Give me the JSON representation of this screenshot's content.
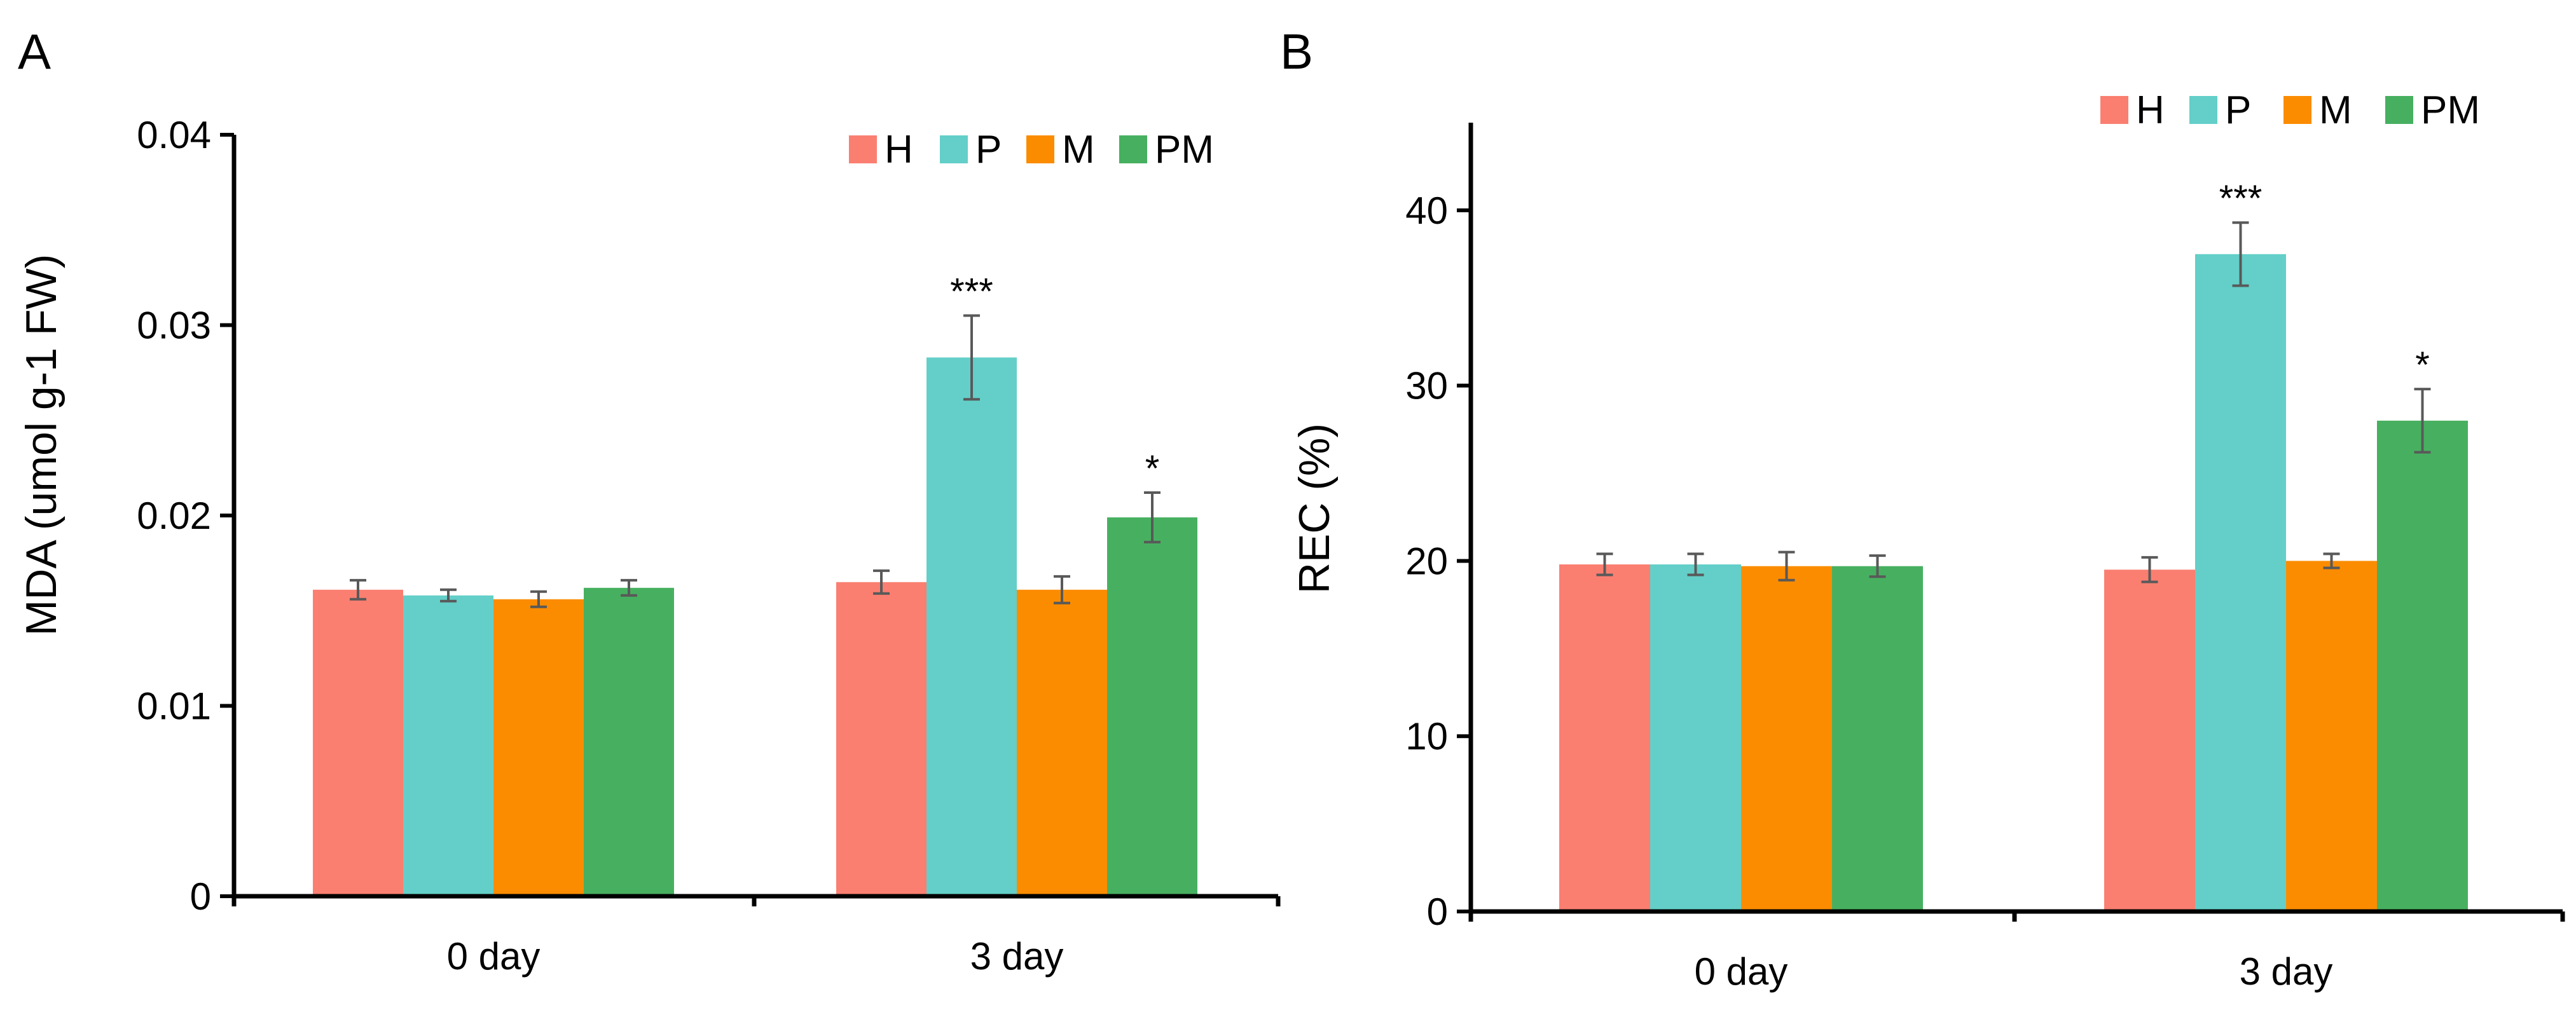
{
  "colors": {
    "H": "#fa7f71",
    "P": "#63cfc8",
    "M": "#fb8c00",
    "PM": "#47b060",
    "axis": "#000000",
    "error": "#595959"
  },
  "chart_data": [
    {
      "panel": "A",
      "type": "bar",
      "title": "",
      "xlabel": "",
      "ylabel": "MDA (umol g-1 FW)",
      "ylim": [
        0,
        0.04
      ],
      "yticks": [
        0,
        0.01,
        0.02,
        0.03,
        0.04
      ],
      "ytick_labels": [
        "0",
        "0.01",
        "0.02",
        "0.03",
        "0.04"
      ],
      "categories": [
        "0 day",
        "3 day"
      ],
      "legend_position": "top-right",
      "series": [
        {
          "name": "H",
          "color_key": "H",
          "values": [
            0.0161,
            0.0165
          ],
          "errors": [
            0.0005,
            0.0006
          ],
          "annotations": [
            "",
            ""
          ]
        },
        {
          "name": "P",
          "color_key": "P",
          "values": [
            0.0158,
            0.0283
          ],
          "errors": [
            0.0003,
            0.0022
          ],
          "annotations": [
            "",
            "***"
          ]
        },
        {
          "name": "M",
          "color_key": "M",
          "values": [
            0.0156,
            0.0161
          ],
          "errors": [
            0.0004,
            0.0007
          ],
          "annotations": [
            "",
            ""
          ]
        },
        {
          "name": "PM",
          "color_key": "PM",
          "values": [
            0.0162,
            0.0199
          ],
          "errors": [
            0.0004,
            0.0013
          ],
          "annotations": [
            "",
            "*"
          ]
        }
      ]
    },
    {
      "panel": "B",
      "type": "bar",
      "title": "",
      "xlabel": "",
      "ylabel": "REC (%)",
      "ylim": [
        0,
        45
      ],
      "yticks": [
        0,
        10,
        20,
        30,
        40
      ],
      "ytick_labels": [
        "0",
        "10",
        "20",
        "30",
        "40"
      ],
      "categories": [
        "0 day",
        "3 day"
      ],
      "legend_position": "top-right",
      "series": [
        {
          "name": "H",
          "color_key": "H",
          "values": [
            19.8,
            19.5
          ],
          "errors": [
            0.6,
            0.7
          ],
          "annotations": [
            "",
            ""
          ]
        },
        {
          "name": "P",
          "color_key": "P",
          "values": [
            19.8,
            37.5
          ],
          "errors": [
            0.6,
            1.8
          ],
          "annotations": [
            "",
            "***"
          ]
        },
        {
          "name": "M",
          "color_key": "M",
          "values": [
            19.7,
            20.0
          ],
          "errors": [
            0.8,
            0.4
          ],
          "annotations": [
            "",
            ""
          ]
        },
        {
          "name": "PM",
          "color_key": "PM",
          "values": [
            19.7,
            28.0
          ],
          "errors": [
            0.6,
            1.8
          ],
          "annotations": [
            "",
            "*"
          ]
        }
      ]
    }
  ]
}
